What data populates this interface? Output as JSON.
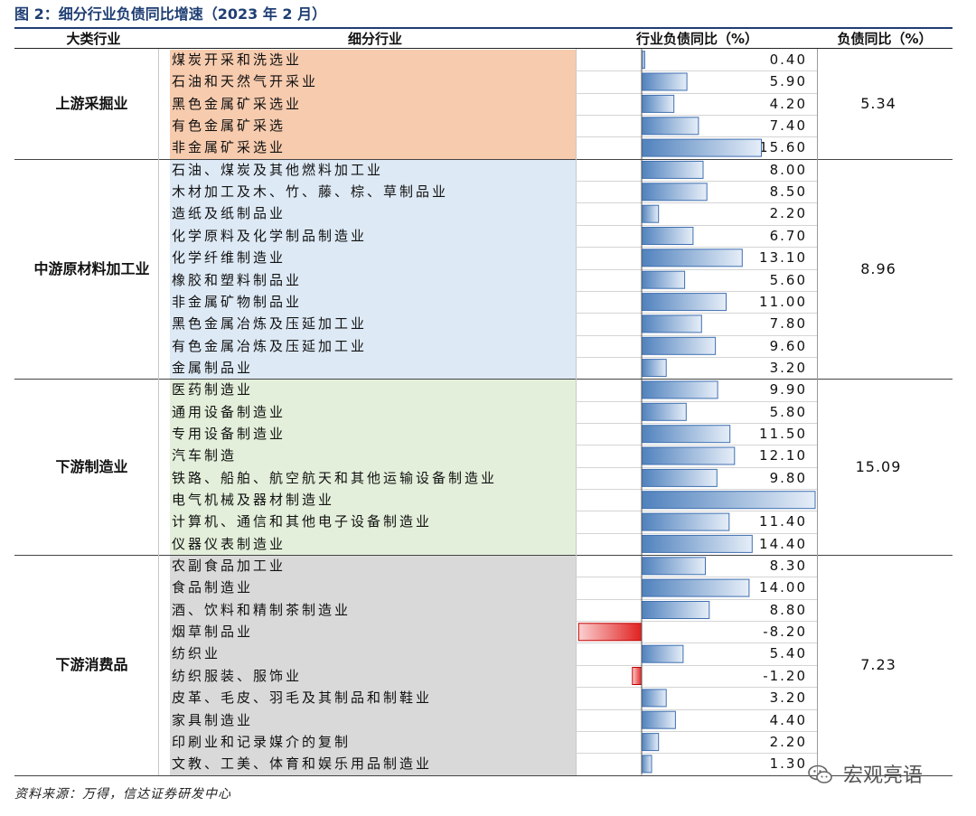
{
  "figure_title": "图 2：细分行业负债同比增速（2023 年 2 月）",
  "headers": {
    "category": "大类行业",
    "subindustry": "细分行业",
    "yoy": "行业负债同比（%）",
    "total": "负债同比（%）"
  },
  "source_note": "资料来源：万得，信达证券研发中心",
  "watermark": "宏观亮语",
  "colors": {
    "group_backgrounds": [
      "#f7cbae",
      "#dde9f5",
      "#e3efda",
      "#d9d9d9"
    ],
    "bar_positive": "#4f81bd",
    "bar_negative": "#e02020",
    "header_accent": "#1f3e73"
  },
  "chart_data": {
    "type": "bar",
    "orientation": "horizontal",
    "title": "图 2：细分行业负债同比增速（2023 年 2 月）",
    "xlabel": "",
    "ylabel": "",
    "xlim": [
      -8.2,
      22.6
    ],
    "grid": false,
    "groups": [
      {
        "name": "上游采掘业",
        "total": "5.34",
        "items": [
          {
            "name": "煤炭开采和洗选业",
            "value": 0.4,
            "label": "0.40"
          },
          {
            "name": "石油和天然气开采业",
            "value": 5.9,
            "label": "5.90"
          },
          {
            "name": "黑色金属矿采选业",
            "value": 4.2,
            "label": "4.20"
          },
          {
            "name": "有色金属矿采选",
            "value": 7.4,
            "label": "7.40"
          },
          {
            "name": "非金属矿采选业",
            "value": 15.6,
            "label": "15.60"
          }
        ]
      },
      {
        "name": "中游原材料加工业",
        "total": "8.96",
        "items": [
          {
            "name": "石油、煤炭及其他燃料加工业",
            "value": 8.0,
            "label": "8.00"
          },
          {
            "name": "木材加工及木、竹、藤、棕、草制品业",
            "value": 8.5,
            "label": "8.50"
          },
          {
            "name": "造纸及纸制品业",
            "value": 2.2,
            "label": "2.20"
          },
          {
            "name": "化学原料及化学制品制造业",
            "value": 6.7,
            "label": "6.70"
          },
          {
            "name": "化学纤维制造业",
            "value": 13.1,
            "label": "13.10"
          },
          {
            "name": "橡胶和塑料制品业",
            "value": 5.6,
            "label": "5.60"
          },
          {
            "name": "非金属矿物制品业",
            "value": 11.0,
            "label": "11.00"
          },
          {
            "name": "黑色金属冶炼及压延加工业",
            "value": 7.8,
            "label": "7.80"
          },
          {
            "name": "有色金属冶炼及压延加工业",
            "value": 9.6,
            "label": "9.60"
          },
          {
            "name": "金属制品业",
            "value": 3.2,
            "label": "3.20"
          }
        ]
      },
      {
        "name": "下游制造业",
        "total": "15.09",
        "items": [
          {
            "name": "医药制造业",
            "value": 9.9,
            "label": "9.90"
          },
          {
            "name": "通用设备制造业",
            "value": 5.8,
            "label": "5.80"
          },
          {
            "name": "专用设备制造业",
            "value": 11.5,
            "label": "11.50"
          },
          {
            "name": "汽车制造",
            "value": 12.1,
            "label": "12.10"
          },
          {
            "name": "铁路、船舶、航空航天和其他运输设备制造业",
            "value": 9.8,
            "label": "9.80"
          },
          {
            "name": "电气机械及器材制造业",
            "value": 22.6,
            "label": "22.60"
          },
          {
            "name": "计算机、通信和其他电子设备制造业",
            "value": 11.4,
            "label": "11.40"
          },
          {
            "name": "仪器仪表制造业",
            "value": 14.4,
            "label": "14.40"
          }
        ]
      },
      {
        "name": "下游消费品",
        "total": "7.23",
        "items": [
          {
            "name": "农副食品加工业",
            "value": 8.3,
            "label": "8.30"
          },
          {
            "name": "食品制造业",
            "value": 14.0,
            "label": "14.00"
          },
          {
            "name": "酒、饮料和精制茶制造业",
            "value": 8.8,
            "label": "8.80"
          },
          {
            "name": "烟草制品业",
            "value": -8.2,
            "label": "-8.20"
          },
          {
            "name": "纺织业",
            "value": 5.4,
            "label": "5.40"
          },
          {
            "name": "纺织服装、服饰业",
            "value": -1.2,
            "label": "-1.20"
          },
          {
            "name": "皮革、毛皮、羽毛及其制品和制鞋业",
            "value": 3.2,
            "label": "3.20"
          },
          {
            "name": "家具制造业",
            "value": 4.4,
            "label": "4.40"
          },
          {
            "name": "印刷业和记录媒介的复制",
            "value": 2.2,
            "label": "2.20"
          },
          {
            "name": "文教、工美、体育和娱乐用品制造业",
            "value": 1.3,
            "label": "1.30"
          }
        ]
      }
    ]
  }
}
